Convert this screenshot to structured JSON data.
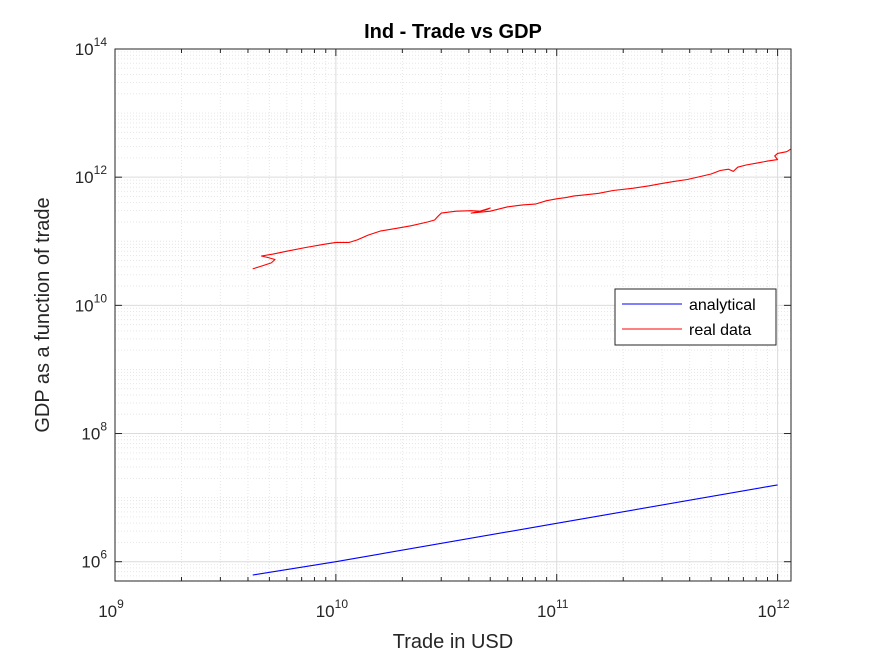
{
  "chart_data": {
    "type": "line",
    "title": "Ind - Trade vs GDP",
    "xlabel": "Trade in USD",
    "ylabel": "GDP as a function of trade",
    "x_scale": "log",
    "y_scale": "log",
    "xlim": [
      1000000000.0,
      1150000000000.0
    ],
    "ylim": [
      500000.0,
      100000000000000.0
    ],
    "x_ticks": [
      {
        "base": "10",
        "exp": "9",
        "value": 1000000000.0
      },
      {
        "base": "10",
        "exp": "10",
        "value": 10000000000.0
      },
      {
        "base": "10",
        "exp": "11",
        "value": 100000000000.0
      },
      {
        "base": "10",
        "exp": "12",
        "value": 1000000000000.0
      }
    ],
    "y_ticks": [
      {
        "base": "10",
        "exp": "6",
        "value": 1000000.0
      },
      {
        "base": "10",
        "exp": "8",
        "value": 100000000.0
      },
      {
        "base": "10",
        "exp": "10",
        "value": 10000000000.0
      },
      {
        "base": "10",
        "exp": "12",
        "value": 1000000000000.0
      },
      {
        "base": "10",
        "exp": "14",
        "value": 100000000000000.0
      }
    ],
    "grid": true,
    "minor_grid": true,
    "legend_position": "right",
    "series": [
      {
        "name": "analytical",
        "color": "#0000ff",
        "points": [
          [
            4200000000.0,
            620000.0
          ],
          [
            10000000000.0,
            1000000.0
          ],
          [
            100000000000.0,
            3980000.0
          ],
          [
            1000000000000.0,
            15800000.0
          ]
        ]
      },
      {
        "name": "real data",
        "color": "#ff0000",
        "points": [
          [
            4200000000.0,
            37000000000.0
          ],
          [
            4600000000.0,
            41000000000.0
          ],
          [
            5100000000.0,
            46000000000.0
          ],
          [
            5300000000.0,
            52000000000.0
          ],
          [
            4900000000.0,
            56000000000.0
          ],
          [
            4600000000.0,
            59000000000.0
          ],
          [
            5200000000.0,
            63000000000.0
          ],
          [
            6000000000.0,
            70000000000.0
          ],
          [
            7300000000.0,
            80000000000.0
          ],
          [
            8900000000.0,
            90000000000.0
          ],
          [
            10000000000.0,
            96000000000.0
          ],
          [
            11500000000.0,
            96000000000.0
          ],
          [
            12500000000.0,
            105000000000.0
          ],
          [
            14000000000.0,
            125000000000.0
          ],
          [
            16000000000.0,
            145000000000.0
          ],
          [
            19000000000.0,
            160000000000.0
          ],
          [
            22000000000.0,
            175000000000.0
          ],
          [
            26000000000.0,
            200000000000.0
          ],
          [
            28000000000.0,
            215000000000.0
          ],
          [
            29000000000.0,
            245000000000.0
          ],
          [
            30000000000.0,
            275000000000.0
          ],
          [
            35000000000.0,
            295000000000.0
          ],
          [
            41000000000.0,
            300000000000.0
          ],
          [
            45000000000.0,
            295000000000.0
          ],
          [
            50000000000.0,
            330000000000.0
          ],
          [
            48000000000.0,
            310000000000.0
          ],
          [
            41000000000.0,
            275000000000.0
          ],
          [
            50000000000.0,
            295000000000.0
          ],
          [
            60000000000.0,
            345000000000.0
          ],
          [
            70000000000.0,
            370000000000.0
          ],
          [
            80000000000.0,
            380000000000.0
          ],
          [
            90000000000.0,
            430000000000.0
          ],
          [
            100000000000.0,
            460000000000.0
          ],
          [
            110000000000.0,
            480000000000.0
          ],
          [
            120000000000.0,
            510000000000.0
          ],
          [
            135000000000.0,
            530000000000.0
          ],
          [
            155000000000.0,
            560000000000.0
          ],
          [
            180000000000.0,
            620000000000.0
          ],
          [
            220000000000.0,
            670000000000.0
          ],
          [
            260000000000.0,
            730000000000.0
          ],
          [
            300000000000.0,
            800000000000.0
          ],
          [
            340000000000.0,
            860000000000.0
          ],
          [
            390000000000.0,
            920000000000.0
          ],
          [
            440000000000.0,
            1010000000000.0
          ],
          [
            500000000000.0,
            1120000000000.0
          ],
          [
            550000000000.0,
            1270000000000.0
          ],
          [
            600000000000.0,
            1330000000000.0
          ],
          [
            630000000000.0,
            1230000000000.0
          ],
          [
            660000000000.0,
            1430000000000.0
          ],
          [
            720000000000.0,
            1550000000000.0
          ],
          [
            800000000000.0,
            1650000000000.0
          ],
          [
            900000000000.0,
            1780000000000.0
          ],
          [
            1000000000000.0,
            1880000000000.0
          ],
          [
            970000000000.0,
            2150000000000.0
          ],
          [
            1000000000000.0,
            2350000000000.0
          ],
          [
            1100000000000.0,
            2500000000000.0
          ],
          [
            1150000000000.0,
            2750000000000.0
          ]
        ]
      }
    ]
  }
}
